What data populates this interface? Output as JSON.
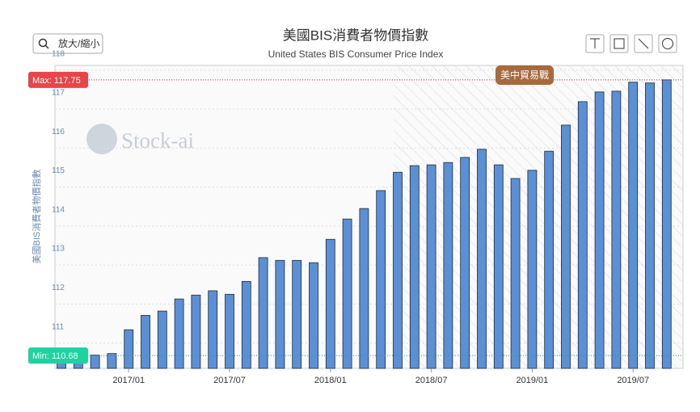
{
  "chart_data": {
    "type": "bar",
    "title": "美國BIS消費者物價指數",
    "subtitle": "United States BIS Consumer Price Index",
    "y_label": "美國BIS消費者物價指數",
    "zoom_button": "放大/縮小",
    "watermark": "Stock-ai",
    "annotation": "美中貿易戰",
    "max": {
      "value": 117.75,
      "label": "Max: 117.75"
    },
    "min": {
      "value": 110.68,
      "label": "Min: 110.68"
    },
    "color": "#5b8fd6",
    "categories": [
      null,
      null,
      null,
      null,
      "2017/01",
      null,
      null,
      null,
      null,
      null,
      "2017/07",
      null,
      null,
      null,
      null,
      null,
      "2018/01",
      null,
      null,
      null,
      null,
      null,
      "2018/07",
      null,
      null,
      null,
      null,
      null,
      "2019/01",
      null,
      null,
      null,
      null,
      null,
      "2019/07",
      null,
      null
    ],
    "values": [
      110.68,
      110.68,
      110.69,
      110.73,
      111.34,
      111.71,
      111.82,
      112.13,
      112.23,
      112.34,
      112.25,
      112.58,
      113.19,
      113.12,
      113.12,
      113.06,
      113.66,
      114.18,
      114.45,
      114.91,
      115.38,
      115.55,
      115.57,
      115.63,
      115.76,
      115.97,
      115.57,
      115.22,
      115.43,
      115.92,
      116.59,
      117.19,
      117.44,
      117.46,
      117.69,
      117.67,
      117.75
    ],
    "ylim": [
      110.35,
      118.12
    ],
    "yticks": [
      111,
      112,
      113,
      114,
      115,
      116,
      117,
      118
    ],
    "grid": true
  }
}
